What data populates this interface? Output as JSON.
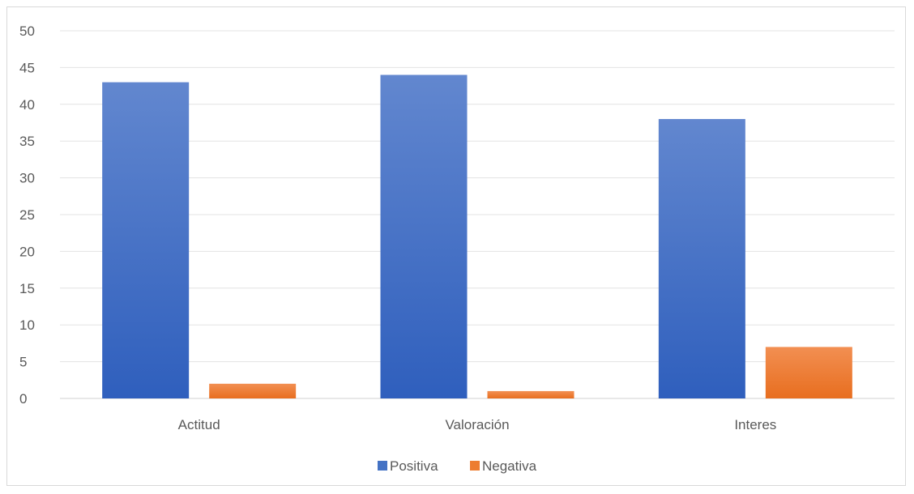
{
  "chart_data": {
    "type": "bar",
    "categories": [
      "Actitud",
      "Valoración",
      "Interes"
    ],
    "series": [
      {
        "name": "Positiva",
        "values": [
          43,
          44,
          38
        ],
        "color": "#4472c4"
      },
      {
        "name": "Negativa",
        "values": [
          2,
          1,
          7
        ],
        "color": "#ed7d31"
      }
    ],
    "ylim": [
      0,
      50
    ],
    "yticks": [
      0,
      5,
      10,
      15,
      20,
      25,
      30,
      35,
      40,
      45,
      50
    ],
    "grid": true,
    "legend_position": "bottom"
  }
}
